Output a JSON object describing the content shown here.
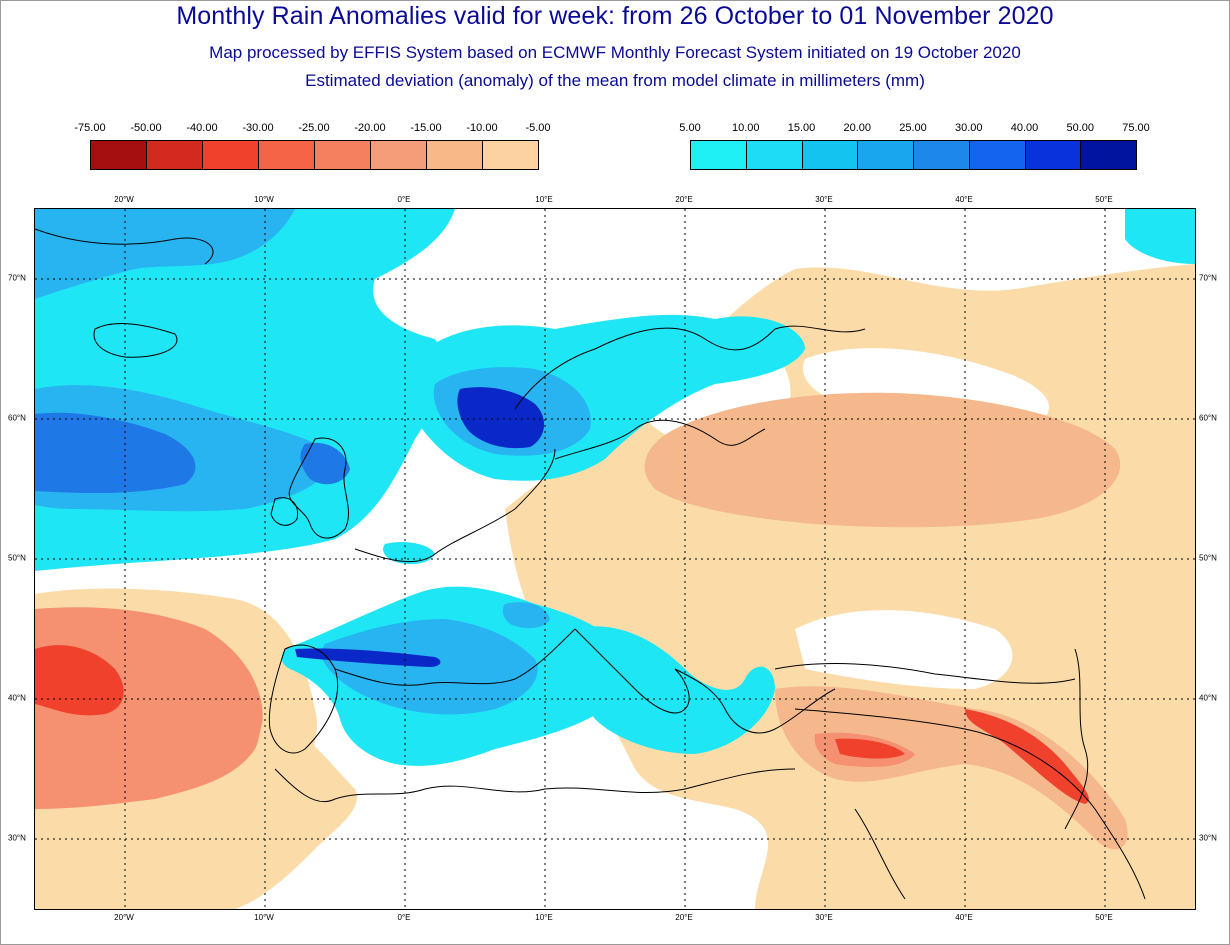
{
  "title": "Monthly Rain Anomalies valid for week: from 26 October to 01 November 2020",
  "subtitle1": "Map processed by EFFIS System based on ECMWF Monthly Forecast System initiated on 19 October 2020",
  "subtitle2": "Estimated deviation (anomaly) of the mean from model climate in millimeters (mm)",
  "legend_negative": {
    "labels": [
      "-75.00",
      "-50.00",
      "-40.00",
      "-30.00",
      "-25.00",
      "-20.00",
      "-15.00",
      "-10.00",
      "-5.00"
    ],
    "colors": [
      "#a50f0f",
      "#d22a1e",
      "#f0412d",
      "#f56446",
      "#f58060",
      "#f59c78",
      "#f8b888",
      "#fbd2a0"
    ]
  },
  "legend_positive": {
    "labels": [
      "5.00",
      "10.00",
      "15.00",
      "20.00",
      "25.00",
      "30.00",
      "40.00",
      "50.00",
      "75.00"
    ],
    "colors": [
      "#1ef0f5",
      "#1edcf5",
      "#14c3f0",
      "#1aa6ee",
      "#1e87ea",
      "#1464f0",
      "#0a32dc",
      "#0014a0"
    ]
  },
  "longitude_ticks": [
    "20°W",
    "10°W",
    "0°E",
    "10°E",
    "20°E",
    "30°E",
    "40°E",
    "50°E"
  ],
  "latitude_ticks": [
    "70°N",
    "60°N",
    "50°N",
    "40°N",
    "30°N"
  ],
  "map_colors": {
    "tan": "#fbdca8",
    "tan_dark": "#f4b88c",
    "salmon": "#f59070",
    "red": "#f0412d",
    "cyan": "#1ee6f5",
    "sky": "#28b4f0",
    "blue": "#1e78e6",
    "deep_blue": "#0a28c8"
  }
}
